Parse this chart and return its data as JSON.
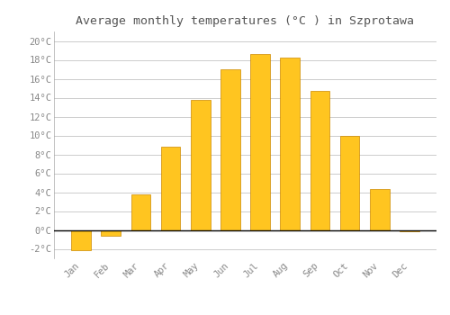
{
  "months": [
    "Jan",
    "Feb",
    "Mar",
    "Apr",
    "May",
    "Jun",
    "Jul",
    "Aug",
    "Sep",
    "Oct",
    "Nov",
    "Dec"
  ],
  "temperatures": [
    -2.1,
    -0.6,
    3.8,
    8.8,
    13.8,
    17.0,
    18.6,
    18.2,
    14.7,
    10.0,
    4.3,
    -0.1
  ],
  "bar_color": "#FFC520",
  "bar_edge_color": "#CC8800",
  "background_color": "#ffffff",
  "grid_color": "#cccccc",
  "title": "Average monthly temperatures (°C ) in Szprotawa",
  "title_fontsize": 9.5,
  "ylim": [
    -3,
    21
  ],
  "yticks": [
    -2,
    0,
    2,
    4,
    6,
    8,
    10,
    12,
    14,
    16,
    18,
    20
  ],
  "zero_line_color": "#000000",
  "tick_label_fontsize": 7.5,
  "tick_label_color": "#888888",
  "title_color": "#555555",
  "bar_width": 0.65
}
